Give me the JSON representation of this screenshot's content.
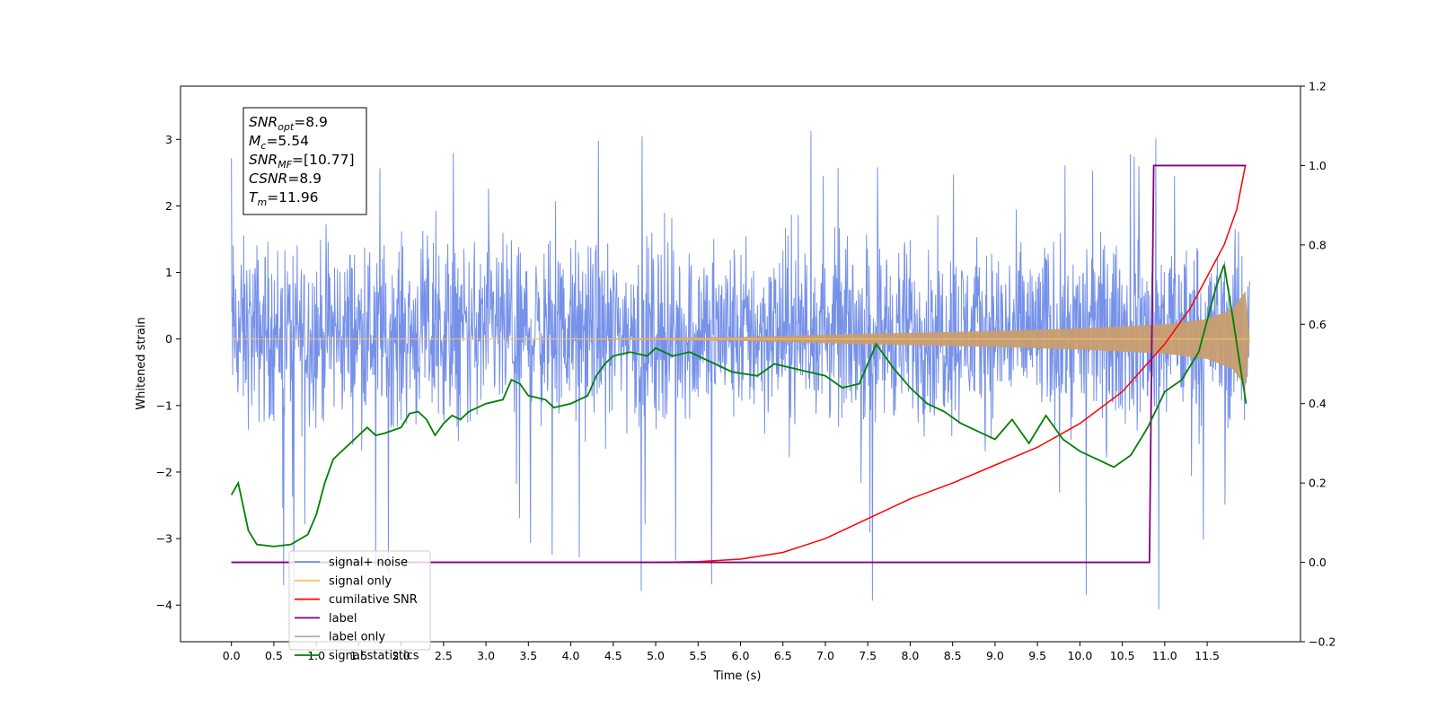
{
  "chart_data": {
    "type": "line",
    "xlabel": "Time (s)",
    "ylabel": "Whitened strain",
    "xlim": [
      -0.6,
      12.6
    ],
    "ylim": [
      -4.55,
      3.8
    ],
    "y2lim": [
      -0.2,
      1.2
    ],
    "x_ticks": [
      "0.0",
      "0.5",
      "1.0",
      "1.5",
      "2.0",
      "2.5",
      "3.0",
      "3.5",
      "4.0",
      "4.5",
      "5.0",
      "5.5",
      "6.0",
      "6.5",
      "7.0",
      "7.5",
      "8.0",
      "8.5",
      "9.0",
      "9.5",
      "10.0",
      "10.5",
      "11.0",
      "11.5"
    ],
    "y_ticks": [
      "3",
      "2",
      "1",
      "0",
      "−1",
      "−2",
      "−3",
      "−4"
    ],
    "y2_ticks": [
      "1.2",
      "1.0",
      "0.8",
      "0.6",
      "0.4",
      "0.2",
      "0.0",
      "−0.2"
    ],
    "annotation": [
      {
        "base": "SNR",
        "sub": "opt",
        "rest": "=8.9"
      },
      {
        "base": "M",
        "sub": "c",
        "rest": "=5.54"
      },
      {
        "base": "SNR",
        "sub": "MF",
        "rest": "=[10.77]"
      },
      {
        "base": "CSNR",
        "sub": "",
        "rest": "=8.9"
      },
      {
        "base": "T",
        "sub": "m",
        "rest": "=11.96"
      }
    ],
    "legend": {
      "placement": "lower-left",
      "entries": [
        {
          "label": "signal+ noise",
          "color": "#6f8be8"
        },
        {
          "label": "signal only",
          "color": "#ffc266"
        },
        {
          "label": "cumilative SNR",
          "color": "#ff0000"
        },
        {
          "label": "label",
          "color": "#800080"
        },
        {
          "label": "label only",
          "color": "#b0b0b0"
        },
        {
          "label": "signal statistics",
          "color": "#008000"
        }
      ]
    },
    "series": [
      {
        "name": "signal+ noise",
        "axis": "left",
        "color": "#6f8be8",
        "x_range": [
          0.0,
          12.0
        ],
        "typical_range": [
          -1.6,
          1.8
        ],
        "extremes": {
          "max": 3.15,
          "min": -4.1
        }
      },
      {
        "name": "signal only",
        "axis": "left",
        "color": "#c8a070",
        "x_range": [
          0.0,
          12.0
        ],
        "envelope": {
          "x": [
            0.0,
            4.0,
            6.0,
            7.5,
            9.0,
            10.0,
            11.0,
            11.5,
            11.8,
            11.95,
            12.0
          ],
          "y": [
            0.0,
            0.005,
            0.03,
            0.08,
            0.12,
            0.16,
            0.22,
            0.3,
            0.45,
            0.72,
            0.05
          ]
        }
      },
      {
        "name": "cumilative SNR",
        "axis": "right",
        "color": "#ff0000",
        "x": [
          0.0,
          5.0,
          5.5,
          6.0,
          6.5,
          7.0,
          7.5,
          8.0,
          8.5,
          9.0,
          9.5,
          10.0,
          10.5,
          11.0,
          11.3,
          11.5,
          11.7,
          11.85,
          11.95
        ],
        "y": [
          0.0,
          0.0,
          0.002,
          0.008,
          0.025,
          0.06,
          0.11,
          0.16,
          0.2,
          0.245,
          0.29,
          0.35,
          0.43,
          0.55,
          0.64,
          0.72,
          0.8,
          0.89,
          1.0
        ]
      },
      {
        "name": "label",
        "axis": "right",
        "color": "#800080",
        "x": [
          0.0,
          10.82,
          10.87,
          11.96
        ],
        "y": [
          0.0,
          0.0,
          1.0,
          1.0
        ]
      },
      {
        "name": "signal statistics",
        "axis": "right",
        "color": "#008000",
        "x": [
          0.0,
          0.08,
          0.2,
          0.3,
          0.5,
          0.7,
          0.9,
          1.0,
          1.1,
          1.2,
          1.3,
          1.4,
          1.5,
          1.6,
          1.7,
          1.8,
          2.0,
          2.1,
          2.2,
          2.3,
          2.4,
          2.5,
          2.6,
          2.7,
          2.8,
          3.0,
          3.2,
          3.3,
          3.4,
          3.5,
          3.7,
          3.8,
          4.0,
          4.2,
          4.3,
          4.4,
          4.5,
          4.7,
          4.9,
          5.0,
          5.2,
          5.4,
          5.7,
          5.9,
          6.2,
          6.4,
          6.6,
          6.8,
          7.0,
          7.2,
          7.4,
          7.6,
          7.8,
          8.0,
          8.2,
          8.4,
          8.6,
          8.8,
          9.0,
          9.2,
          9.4,
          9.6,
          9.8,
          10.0,
          10.2,
          10.4,
          10.6,
          10.8,
          11.0,
          11.2,
          11.4,
          11.6,
          11.7,
          11.8,
          11.9,
          11.96
        ],
        "y": [
          0.17,
          0.2,
          0.08,
          0.045,
          0.04,
          0.045,
          0.07,
          0.12,
          0.2,
          0.26,
          0.28,
          0.3,
          0.32,
          0.34,
          0.32,
          0.325,
          0.34,
          0.375,
          0.38,
          0.36,
          0.32,
          0.35,
          0.37,
          0.36,
          0.38,
          0.4,
          0.41,
          0.46,
          0.45,
          0.42,
          0.41,
          0.39,
          0.4,
          0.42,
          0.47,
          0.5,
          0.52,
          0.53,
          0.52,
          0.54,
          0.52,
          0.53,
          0.5,
          0.48,
          0.47,
          0.5,
          0.49,
          0.48,
          0.47,
          0.44,
          0.45,
          0.55,
          0.49,
          0.44,
          0.4,
          0.38,
          0.35,
          0.33,
          0.31,
          0.36,
          0.3,
          0.37,
          0.31,
          0.28,
          0.26,
          0.24,
          0.27,
          0.34,
          0.43,
          0.46,
          0.53,
          0.69,
          0.75,
          0.62,
          0.48,
          0.4
        ]
      }
    ]
  }
}
